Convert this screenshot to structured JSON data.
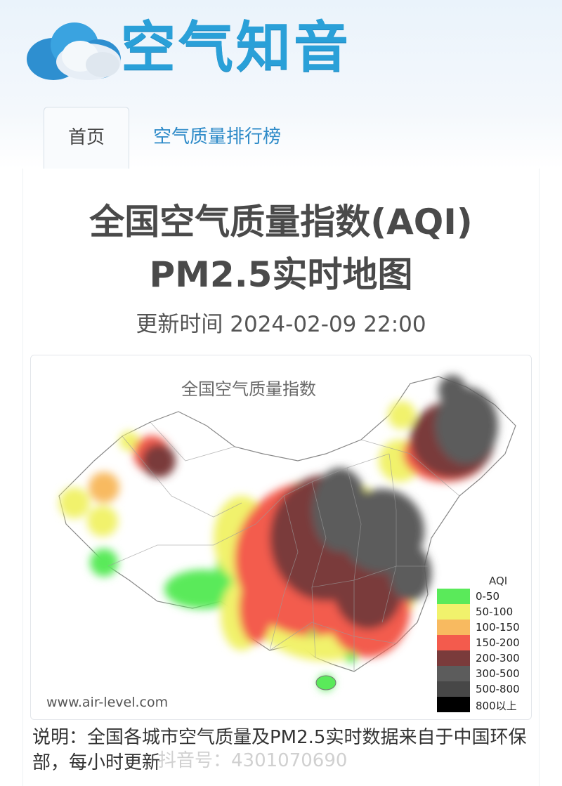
{
  "header": {
    "logo_text": "空气知音"
  },
  "tabs": [
    {
      "label": "首页"
    },
    {
      "label": "空气质量排行榜"
    }
  ],
  "page": {
    "title_line1": "全国空气质量指数(AQI)",
    "title_line2": "PM2.5实时地图",
    "update_label": "更新时间",
    "update_time": "2024-02-09 22:00"
  },
  "map": {
    "title": "全国空气质量指数",
    "site_url": "www.air-level.com",
    "legend": {
      "title": "AQI",
      "items": [
        {
          "label": "0-50",
          "color": "#5aea5a"
        },
        {
          "label": "50-100",
          "color": "#f1f26c"
        },
        {
          "label": "100-150",
          "color": "#f8ba60"
        },
        {
          "label": "150-200",
          "color": "#f35b4d"
        },
        {
          "label": "200-300",
          "color": "#7a3b3b"
        },
        {
          "label": "300-500",
          "color": "#5c5c5c"
        },
        {
          "label": "500-800",
          "color": "#474747"
        },
        {
          "label": "800以上",
          "color": "#000000"
        }
      ]
    }
  },
  "note": "说明：全国各城市空气质量及PM2.5实时数据来自于中国环保部，每小时更新",
  "watermark": "抖音号：4301070690"
}
